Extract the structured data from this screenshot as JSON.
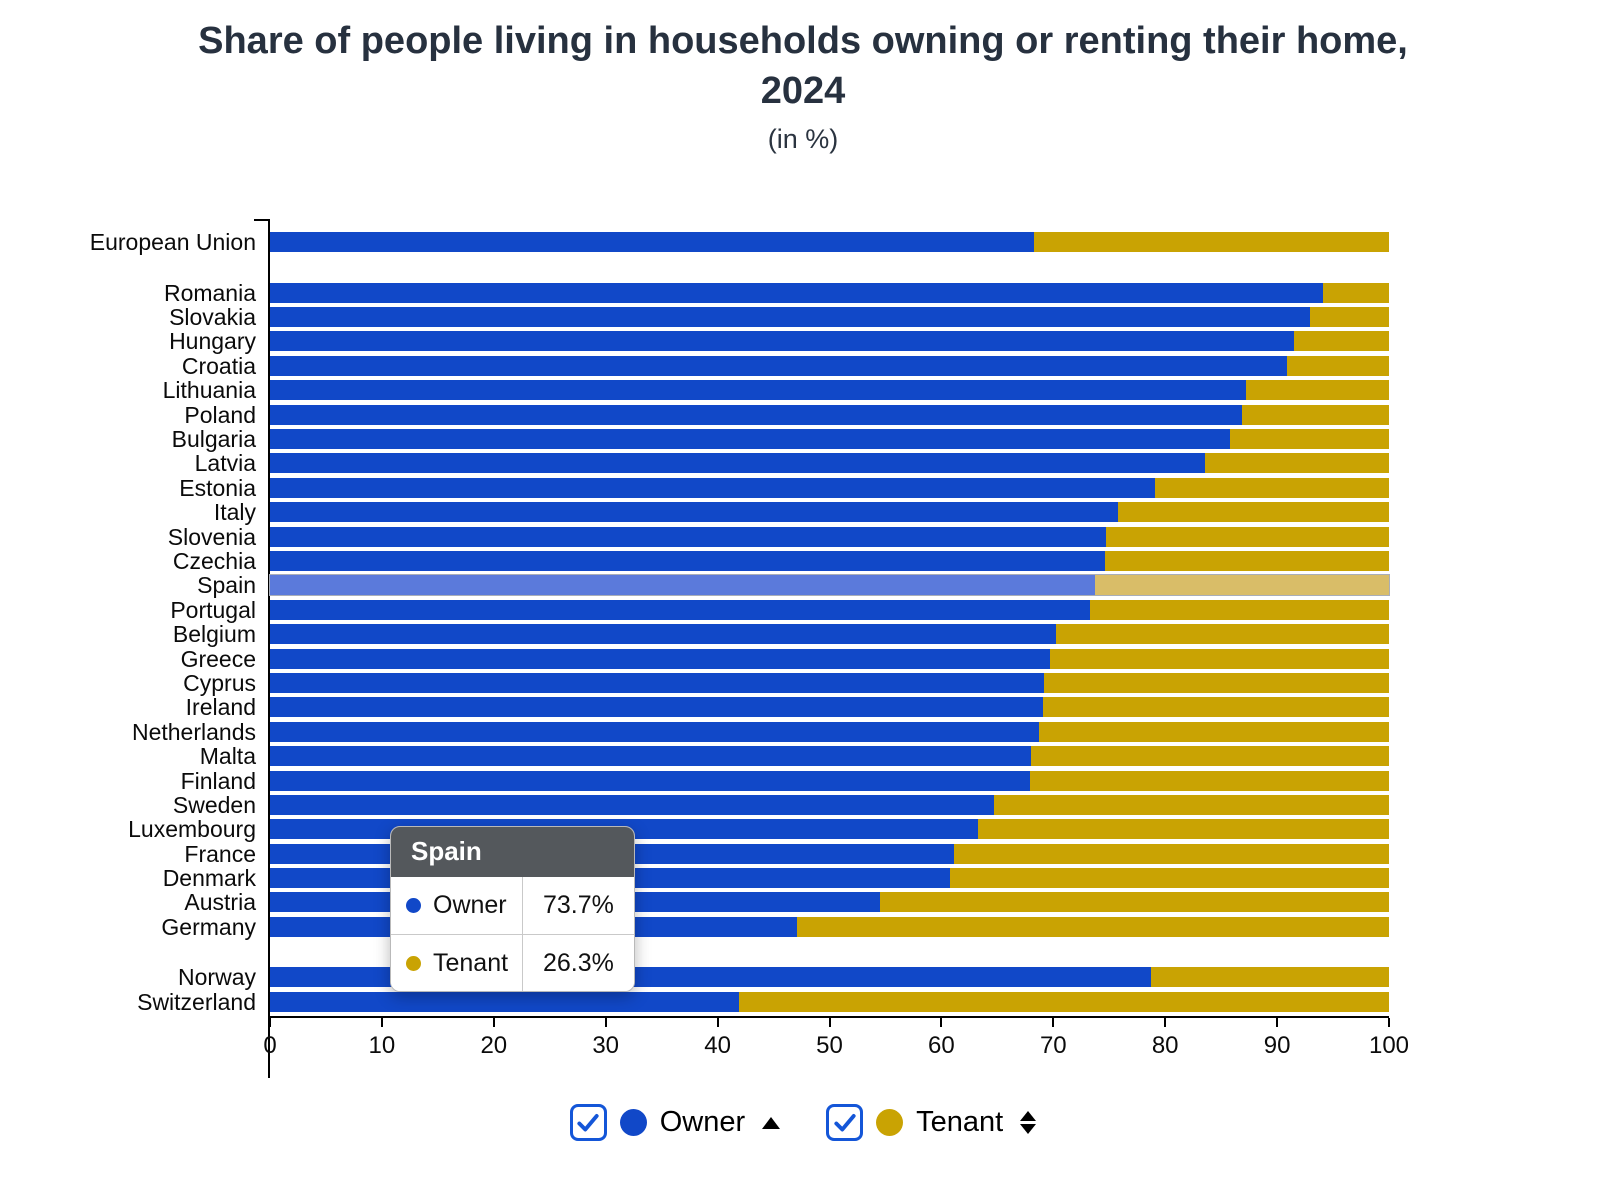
{
  "title": "Share of people living in households owning or renting their home, 2024",
  "subtitle": "(in %)",
  "chart_data": {
    "type": "bar",
    "orientation": "horizontal",
    "stacked": true,
    "title": "Share of people living in households owning or renting their home, 2024",
    "xlabel": "",
    "ylabel": "",
    "xlim": [
      0,
      100
    ],
    "x_ticks": [
      0,
      10,
      20,
      30,
      40,
      50,
      60,
      70,
      80,
      90,
      100
    ],
    "grid": false,
    "legend_position": "bottom",
    "series_names": [
      "Owner",
      "Tenant"
    ],
    "highlighted": "Spain",
    "colors": {
      "owner": "#1148C8",
      "tenant": "#C9A303",
      "owner_highlight": "#5B7ADB",
      "tenant_highlight": "#D9BD68"
    },
    "rows": [
      {
        "category": "European Union",
        "owner": 68.3,
        "tenant": 31.7,
        "gap_after": true
      },
      {
        "category": "Romania",
        "owner": 94.1,
        "tenant": 5.9
      },
      {
        "category": "Slovakia",
        "owner": 92.9,
        "tenant": 7.1
      },
      {
        "category": "Hungary",
        "owner": 91.5,
        "tenant": 8.5
      },
      {
        "category": "Croatia",
        "owner": 90.9,
        "tenant": 9.1
      },
      {
        "category": "Lithuania",
        "owner": 87.2,
        "tenant": 12.8
      },
      {
        "category": "Poland",
        "owner": 86.9,
        "tenant": 13.1
      },
      {
        "category": "Bulgaria",
        "owner": 85.8,
        "tenant": 14.2
      },
      {
        "category": "Latvia",
        "owner": 83.6,
        "tenant": 16.4
      },
      {
        "category": "Estonia",
        "owner": 79.1,
        "tenant": 20.9
      },
      {
        "category": "Italy",
        "owner": 75.8,
        "tenant": 24.2
      },
      {
        "category": "Slovenia",
        "owner": 74.7,
        "tenant": 25.3
      },
      {
        "category": "Czechia",
        "owner": 74.6,
        "tenant": 25.4
      },
      {
        "category": "Spain",
        "owner": 73.7,
        "tenant": 26.3
      },
      {
        "category": "Portugal",
        "owner": 73.3,
        "tenant": 26.7
      },
      {
        "category": "Belgium",
        "owner": 70.2,
        "tenant": 29.8
      },
      {
        "category": "Greece",
        "owner": 69.7,
        "tenant": 30.3
      },
      {
        "category": "Cyprus",
        "owner": 69.2,
        "tenant": 30.8
      },
      {
        "category": "Ireland",
        "owner": 69.1,
        "tenant": 30.9
      },
      {
        "category": "Netherlands",
        "owner": 68.7,
        "tenant": 31.3
      },
      {
        "category": "Malta",
        "owner": 68.0,
        "tenant": 32.0
      },
      {
        "category": "Finland",
        "owner": 67.9,
        "tenant": 32.1
      },
      {
        "category": "Sweden",
        "owner": 64.7,
        "tenant": 35.3
      },
      {
        "category": "Luxembourg",
        "owner": 63.3,
        "tenant": 36.7
      },
      {
        "category": "France",
        "owner": 61.1,
        "tenant": 38.9
      },
      {
        "category": "Denmark",
        "owner": 60.8,
        "tenant": 39.2
      },
      {
        "category": "Austria",
        "owner": 54.5,
        "tenant": 45.5
      },
      {
        "category": "Germany",
        "owner": 47.1,
        "tenant": 52.9
      },
      {
        "category": "Norway",
        "owner": 78.7,
        "tenant": 21.3,
        "gap_before": true
      },
      {
        "category": "Switzerland",
        "owner": 41.9,
        "tenant": 58.1
      }
    ]
  },
  "tooltip": {
    "title": "Spain",
    "rows": [
      {
        "label": "Owner",
        "value": "73.7%",
        "color": "#1148C8"
      },
      {
        "label": "Tenant",
        "value": "26.3%",
        "color": "#C9A303"
      }
    ]
  },
  "legend": {
    "items": [
      {
        "label": "Owner",
        "checked": true,
        "color": "#1148C8",
        "sort_icon": "up"
      },
      {
        "label": "Tenant",
        "checked": true,
        "color": "#C9A303",
        "sort_icon": "updown"
      }
    ]
  }
}
